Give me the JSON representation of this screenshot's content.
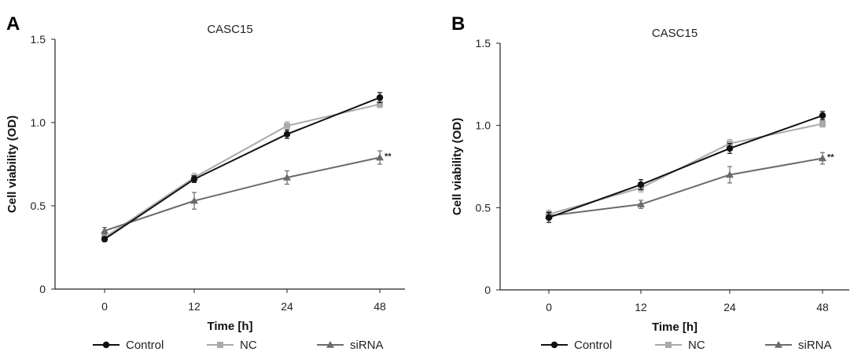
{
  "chart_data": [
    {
      "panel_label": "A",
      "type": "line",
      "title": "CASC15",
      "xlabel": "Time [h]",
      "ylabel": "Cell viability (OD)",
      "categories": [
        "0",
        "12",
        "24",
        "48"
      ],
      "y_ticks": [
        "0",
        "0.5",
        "1.0",
        "1.5"
      ],
      "ylim": [
        0,
        1.5
      ],
      "grid": false,
      "series": [
        {
          "name": "Control",
          "color": "#111111",
          "marker": "circle",
          "values": [
            0.3,
            0.66,
            0.93,
            1.15
          ],
          "errors": [
            0.015,
            0.02,
            0.025,
            0.03
          ]
        },
        {
          "name": "NC",
          "color": "#aaaaaa",
          "marker": "square",
          "values": [
            0.31,
            0.67,
            0.98,
            1.11
          ],
          "errors": [
            0.02,
            0.025,
            0.025,
            0.02
          ]
        },
        {
          "name": "siRNA",
          "color": "#6b6b6b",
          "marker": "triangle",
          "values": [
            0.35,
            0.53,
            0.67,
            0.79
          ],
          "errors": [
            0.02,
            0.05,
            0.04,
            0.04
          ]
        }
      ],
      "annotations": [
        {
          "series": "siRNA",
          "x": "48",
          "text": "**"
        }
      ]
    },
    {
      "panel_label": "B",
      "type": "line",
      "title": "CASC15",
      "xlabel": "Time [h]",
      "ylabel": "Cell viability (OD)",
      "categories": [
        "0",
        "12",
        "24",
        "48"
      ],
      "y_ticks": [
        "0",
        "0.5",
        "1.0",
        "1.5"
      ],
      "ylim": [
        0,
        1.5
      ],
      "grid": false,
      "series": [
        {
          "name": "Control",
          "color": "#111111",
          "marker": "circle",
          "values": [
            0.44,
            0.64,
            0.86,
            1.06
          ],
          "errors": [
            0.03,
            0.03,
            0.03,
            0.025
          ]
        },
        {
          "name": "NC",
          "color": "#aaaaaa",
          "marker": "square",
          "values": [
            0.46,
            0.62,
            0.89,
            1.01
          ],
          "errors": [
            0.025,
            0.025,
            0.025,
            0.02
          ]
        },
        {
          "name": "siRNA",
          "color": "#6b6b6b",
          "marker": "triangle",
          "values": [
            0.45,
            0.52,
            0.7,
            0.8
          ],
          "errors": [
            0.025,
            0.025,
            0.05,
            0.035
          ]
        }
      ],
      "annotations": [
        {
          "series": "siRNA",
          "x": "48",
          "text": "**"
        }
      ]
    }
  ]
}
